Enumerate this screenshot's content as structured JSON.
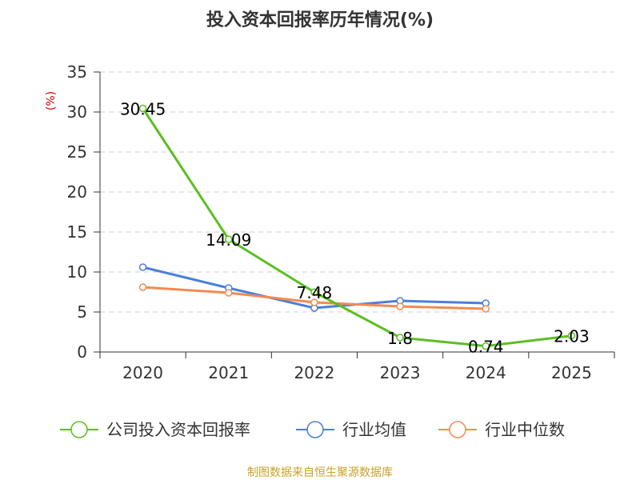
{
  "chart_data": {
    "type": "line",
    "title": "投入资本回报率历年情况(%)",
    "ylabel": "(%)",
    "xlabel": "",
    "categories": [
      "2020",
      "2021",
      "2022",
      "2023",
      "2024",
      "2025"
    ],
    "ylim": [
      0,
      35
    ],
    "yticks": [
      0,
      5,
      10,
      15,
      20,
      25,
      30,
      35
    ],
    "grid": "horizontal-dashed",
    "series": [
      {
        "name": "公司投入资本回报率",
        "color": "#5bbf21",
        "values": [
          30.45,
          14.09,
          7.48,
          1.8,
          0.74,
          2.03
        ],
        "labels": [
          "30.45",
          "14.09",
          "7.48",
          "1.8",
          "0.74",
          "2.03"
        ]
      },
      {
        "name": "行业均值",
        "color": "#4a7fdb",
        "values": [
          10.6,
          8.0,
          5.5,
          6.4,
          6.1,
          null
        ]
      },
      {
        "name": "行业中位数",
        "color": "#f28a52",
        "values": [
          8.1,
          7.4,
          6.2,
          5.7,
          5.4,
          null
        ]
      }
    ],
    "legend_position": "bottom",
    "source": "制图数据来自恒生聚源数据库"
  }
}
